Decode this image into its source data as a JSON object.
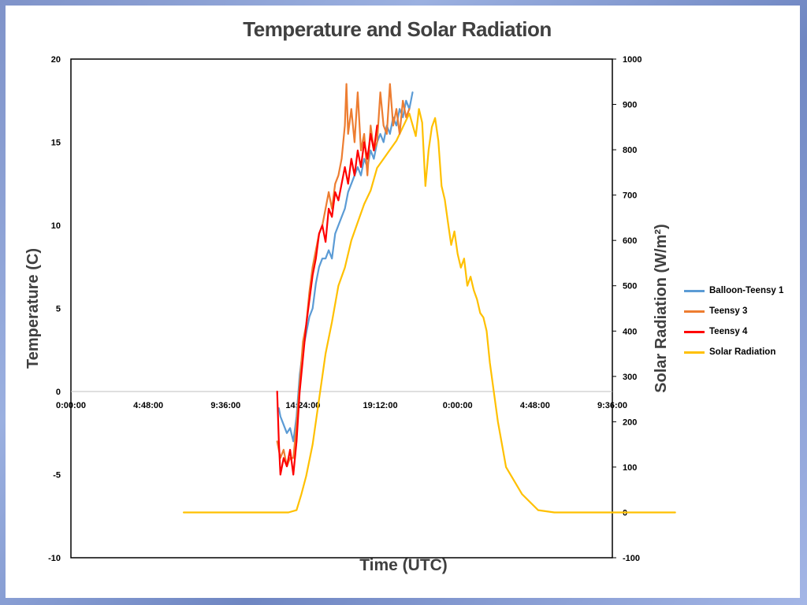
{
  "chart_data": {
    "type": "line",
    "title": "Temperature and Solar Radiation",
    "xlabel": "Time (UTC)",
    "ylabel": "Temperature (C)",
    "y2label": "Solar Radiation (W/m²)",
    "x_tick_labels": [
      "0:00:00",
      "4:48:00",
      "9:36:00",
      "14:24:00",
      "19:12:00",
      "0:00:00",
      "4:48:00",
      "9:36:00"
    ],
    "xlim_hours": [
      0,
      33.6
    ],
    "ylim": [
      -10,
      20
    ],
    "y_ticks": [
      20,
      15,
      10,
      5,
      0,
      -5,
      -10
    ],
    "y2lim": [
      -100,
      1000
    ],
    "y2_ticks": [
      1000,
      900,
      800,
      700,
      600,
      500,
      400,
      300,
      200,
      100,
      0,
      -100
    ],
    "legend_position": "right",
    "grid": false,
    "series": [
      {
        "name": "Balloon-Teensy 1",
        "color": "#5b9bd5",
        "axis": "left",
        "x": [
          12.9,
          13.0,
          13.2,
          13.4,
          13.6,
          13.8,
          14.0,
          14.2,
          14.4,
          14.6,
          14.8,
          15.0,
          15.2,
          15.4,
          15.6,
          15.8,
          16.0,
          16.2,
          16.4,
          16.6,
          16.8,
          17.0,
          17.2,
          17.4,
          17.6,
          17.8,
          18.0,
          18.2,
          18.4,
          18.6,
          18.8,
          19.0,
          19.2,
          19.4,
          19.6,
          19.8,
          20.0,
          20.2,
          20.4,
          20.6,
          20.8,
          21.0,
          21.2
        ],
        "values": [
          -1.0,
          -1.5,
          -2.0,
          -2.5,
          -2.2,
          -3.0,
          -1.5,
          1.0,
          2.5,
          3.5,
          4.5,
          5.0,
          6.5,
          7.5,
          8.0,
          8.0,
          8.5,
          8.0,
          9.5,
          10.0,
          10.5,
          11.0,
          12.0,
          12.5,
          13.0,
          13.5,
          13.0,
          14.0,
          13.5,
          14.5,
          14.0,
          15.0,
          15.5,
          15.0,
          16.0,
          15.5,
          16.5,
          16.0,
          17.0,
          16.5,
          17.5,
          17.0,
          18.0
        ]
      },
      {
        "name": "Teensy 3",
        "color": "#ed7d31",
        "axis": "left",
        "x": [
          12.8,
          13.0,
          13.2,
          13.4,
          13.6,
          13.8,
          14.0,
          14.2,
          14.4,
          14.6,
          14.8,
          15.0,
          15.2,
          15.4,
          15.6,
          15.8,
          16.0,
          16.2,
          16.4,
          16.6,
          16.8,
          17.0,
          17.1,
          17.2,
          17.4,
          17.6,
          17.8,
          18.0,
          18.2,
          18.4,
          18.6,
          18.8,
          19.0,
          19.2,
          19.4,
          19.6,
          19.8,
          20.0,
          20.2,
          20.4,
          20.6,
          20.8,
          21.0
        ],
        "values": [
          -3.0,
          -4.0,
          -3.5,
          -4.5,
          -4.0,
          -4.0,
          -2.0,
          0.5,
          3.0,
          4.0,
          6.0,
          7.5,
          8.5,
          9.5,
          10.0,
          11.0,
          12.0,
          11.0,
          12.5,
          13.0,
          14.0,
          16.0,
          18.5,
          15.5,
          17.0,
          15.0,
          18.0,
          14.5,
          15.5,
          13.0,
          16.0,
          14.5,
          15.0,
          18.0,
          16.0,
          15.5,
          18.5,
          16.0,
          17.0,
          15.5,
          17.5,
          16.5,
          17.0
        ]
      },
      {
        "name": "Teensy 4",
        "color": "#ff0000",
        "axis": "left",
        "x": [
          12.8,
          12.9,
          13.0,
          13.2,
          13.4,
          13.6,
          13.8,
          14.0,
          14.2,
          14.4,
          14.6,
          14.8,
          15.0,
          15.2,
          15.4,
          15.6,
          15.8,
          16.0,
          16.2,
          16.4,
          16.6,
          16.8,
          17.0,
          17.2,
          17.4,
          17.6,
          17.8,
          18.0,
          18.2,
          18.4,
          18.6,
          18.8,
          19.0
        ],
        "values": [
          0.0,
          -3.0,
          -5.0,
          -4.0,
          -4.5,
          -3.5,
          -5.0,
          -3.0,
          0.0,
          2.0,
          4.0,
          5.5,
          7.0,
          8.0,
          9.5,
          10.0,
          9.0,
          11.0,
          10.5,
          12.0,
          11.5,
          12.5,
          13.5,
          12.5,
          14.0,
          13.0,
          14.5,
          13.5,
          15.0,
          14.0,
          15.5,
          14.5,
          16.0
        ]
      },
      {
        "name": "Solar Radiation",
        "color": "#ffc000",
        "axis": "right",
        "x": [
          7.0,
          8.0,
          9.0,
          10.0,
          11.0,
          12.0,
          13.0,
          13.5,
          14.0,
          14.3,
          14.6,
          15.0,
          15.4,
          15.8,
          16.2,
          16.6,
          17.0,
          17.4,
          17.8,
          18.2,
          18.6,
          19.0,
          19.4,
          19.8,
          20.2,
          20.6,
          21.0,
          21.4,
          21.6,
          21.8,
          22.0,
          22.2,
          22.4,
          22.6,
          22.8,
          23.0,
          23.2,
          23.4,
          23.6,
          23.8,
          24.0,
          24.2,
          24.4,
          24.6,
          24.8,
          25.0,
          25.2,
          25.4,
          25.6,
          25.8,
          26.0,
          26.5,
          27.0,
          28.0,
          29.0,
          30.0,
          31.0,
          32.0,
          33.0,
          34.0,
          35.0,
          36.0,
          37.5
        ],
        "values": [
          0,
          0,
          0,
          0,
          0,
          0,
          0,
          0,
          5,
          40,
          80,
          150,
          250,
          350,
          420,
          500,
          540,
          600,
          640,
          680,
          710,
          760,
          780,
          800,
          820,
          850,
          880,
          830,
          890,
          860,
          720,
          800,
          850,
          870,
          820,
          720,
          690,
          640,
          590,
          620,
          570,
          540,
          560,
          500,
          520,
          490,
          470,
          440,
          430,
          400,
          330,
          200,
          100,
          40,
          5,
          0,
          0,
          0,
          0,
          0,
          0,
          0,
          0
        ]
      }
    ]
  }
}
